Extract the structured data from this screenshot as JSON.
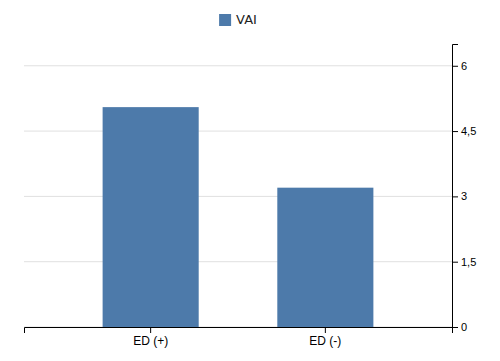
{
  "chart_data": {
    "type": "bar",
    "categories": [
      "ED (+)",
      "ED (-)"
    ],
    "series": [
      {
        "name": "VAI",
        "color": "#4d7aaa",
        "values": [
          5.05,
          3.2
        ]
      }
    ],
    "ylim": [
      0,
      6.5
    ],
    "yticks": [
      0,
      {
        "value": 1.5,
        "label": "1,5"
      },
      3,
      {
        "value": 4.5,
        "label": "4,5"
      },
      6
    ],
    "grid": true,
    "legend": "top"
  }
}
